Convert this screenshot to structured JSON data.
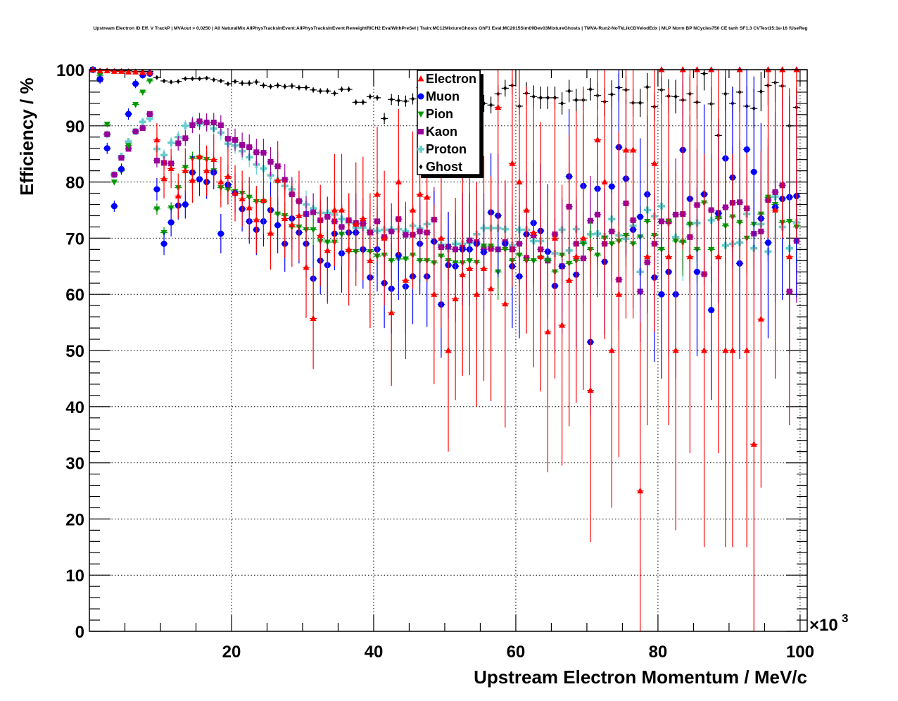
{
  "chart_data": {
    "type": "scatter",
    "title": "Upstream Electron ID Eff. V TrackP | MVAout > 0.0250 | All NaturalMix AllPhysTracksInEvent:AllPhysTracksInEvent ReweightRICH2 EvalWithPreSel | Train:MC12MixtureGhosts GhF1 Eval:MC2015Sim09Dev03MixtureGhosts | TMVA-Run2-NoTkLikCDVelodEdx | MLP Norm BP NCycles750 CE tanh SF1.3 CVTest15:1e-16 !UseReg",
    "xlabel": "Upstream Electron Momentum / MeV/c",
    "ylabel": "Efficiency / %",
    "x_multiplier": "×10",
    "x_multiplier_exp": "3",
    "xlim": [
      0,
      101
    ],
    "ylim": [
      0,
      100
    ],
    "xticks": [
      "20",
      "40",
      "60",
      "80",
      "100"
    ],
    "yticks": [
      "0",
      "10",
      "20",
      "30",
      "40",
      "50",
      "60",
      "70",
      "80",
      "90",
      "100"
    ],
    "grid": true,
    "legend_position": "top-center",
    "bin_width": 1,
    "series": [
      {
        "name": "Electron",
        "color": "#ff0000",
        "marker": "triangle-up",
        "values": [
          100,
          99.8,
          99.8,
          99.7,
          99.7,
          99.6,
          99.6,
          99.5,
          99.4,
          87.5,
          80.6,
          82.4,
          77.5,
          82,
          80.3,
          84.5,
          82,
          84,
          80,
          81,
          78,
          77,
          75.4,
          73.3,
          76.7,
          70.9,
          80.3,
          73.5,
          72.4,
          74,
          64.8,
          55.7,
          70.5,
          67.8,
          75,
          75,
          68,
          72.5,
          73.5,
          66,
          77.8,
          70,
          56.7,
          80,
          62.5,
          75,
          77.8,
          77.3,
          60,
          70,
          50,
          59.2,
          63.5,
          64.6,
          60,
          64.6,
          61,
          93.3,
          58.3,
          83.3,
          80,
          75,
          71,
          66.7,
          53.3,
          70,
          54.5,
          62.5,
          66.7,
          70,
          42.9,
          87.5,
          80,
          50,
          60,
          85.7,
          85.7,
          25,
          66.7,
          83.3,
          100,
          66.7,
          50,
          100,
          66.7,
          100,
          50,
          100,
          66.7,
          50,
          50,
          100,
          50,
          33.3,
          55.6,
          100,
          75,
          100,
          66.7,
          100
        ],
        "err": [
          0.3,
          0.3,
          0.3,
          0.3,
          0.3,
          0.3,
          0.3,
          0.3,
          0.3,
          3,
          3.5,
          3.5,
          4,
          4,
          4,
          4,
          4.5,
          4.5,
          4.5,
          5,
          5,
          5,
          5.5,
          6,
          6,
          6.5,
          7,
          7,
          7.5,
          8,
          9,
          9,
          9,
          9.5,
          10,
          10,
          10,
          11,
          11,
          12,
          12,
          12,
          13,
          13,
          14,
          14,
          15,
          15,
          16,
          16,
          18,
          18,
          18,
          19,
          20,
          20,
          20,
          22,
          22,
          22,
          22,
          22,
          24,
          24,
          25,
          25,
          25,
          26,
          26,
          27,
          27,
          28,
          28,
          28,
          29,
          30,
          30,
          30,
          30,
          30,
          30,
          30,
          32,
          32,
          35,
          32,
          35,
          35,
          35,
          35,
          35,
          35,
          35,
          35,
          30,
          30,
          30,
          30,
          30,
          30
        ]
      },
      {
        "name": "Muon",
        "color": "#0000ff",
        "marker": "circle",
        "values": [
          100,
          98.3,
          86,
          75.7,
          82.3,
          92.1,
          97.5,
          99,
          99.3,
          78.7,
          69,
          72.8,
          75.8,
          76,
          81.7,
          80.5,
          80,
          81.7,
          70.8,
          79.5,
          78,
          75.2,
          73,
          71.5,
          73,
          75,
          72.3,
          69,
          73.5,
          71,
          69,
          62.8,
          66,
          65.2,
          70.8,
          67.3,
          71,
          71,
          68,
          63,
          68,
          62,
          61,
          67,
          61.4,
          63.2,
          69,
          63.2,
          69.4,
          58.2,
          65.2,
          65,
          68,
          68,
          69,
          67.5,
          74.6,
          74,
          69,
          65,
          63.2,
          70.7,
          72.7,
          71.3,
          67.6,
          61.5,
          65,
          81,
          63.5,
          79.3,
          51.5,
          78.8,
          65.8,
          79.2,
          86.2,
          80.6,
          71.5,
          73.8,
          77.8,
          63,
          60,
          64,
          60,
          85.7,
          77,
          64,
          77.8,
          57.2,
          74.4,
          84.2,
          80.8,
          65.5,
          85.8,
          81.8,
          73.5,
          69.2,
          75.5,
          77,
          77.3,
          77.5
        ],
        "err": [
          0.5,
          0.8,
          1,
          1,
          1,
          1,
          0.8,
          0.5,
          0.5,
          2,
          2,
          2.5,
          2.5,
          2.5,
          3,
          3,
          3,
          3,
          3.5,
          3.5,
          3.5,
          4,
          4,
          4.5,
          4.5,
          5,
          5,
          5,
          5.5,
          5.5,
          6,
          6,
          6,
          6.5,
          6.5,
          7,
          7,
          7,
          7,
          7.5,
          7.5,
          8,
          8,
          8,
          8.5,
          8.5,
          9,
          9,
          9,
          9.5,
          9.5,
          10,
          10,
          10,
          10,
          10.5,
          10.5,
          11,
          11,
          11,
          11,
          11,
          11,
          12,
          12,
          12,
          12,
          12,
          13,
          13,
          13,
          13,
          13,
          14,
          14,
          14,
          14,
          14,
          14,
          15,
          15,
          15,
          15,
          15,
          15,
          15,
          16,
          16,
          16,
          16,
          16,
          17,
          17,
          17,
          17,
          17,
          17,
          18,
          18,
          18
        ]
      },
      {
        "name": "Pion",
        "color": "#009900",
        "marker": "triangle-down",
        "values": [
          100,
          99,
          90.3,
          80,
          82,
          86.5,
          93.8,
          96,
          98,
          75.2,
          71,
          75.4,
          79,
          82.6,
          84.2,
          84.3,
          84,
          82,
          79,
          78.7,
          78.3,
          78,
          77.3,
          76.5,
          76.5,
          75,
          74.3,
          74,
          72,
          72,
          71.5,
          71.5,
          69.5,
          69.3,
          69.3,
          70.7,
          67.6,
          67.6,
          67.8,
          67.6,
          66.8,
          67,
          66,
          66.3,
          66.3,
          67,
          66,
          66,
          65.6,
          66.8,
          66,
          65.6,
          65.6,
          66,
          65.7,
          68.6,
          68.6,
          64,
          68,
          66,
          67,
          66,
          66,
          66.5,
          66,
          64,
          67,
          65.5,
          66,
          69,
          68,
          67,
          70,
          69,
          69.5,
          70.5,
          69,
          70.2,
          73,
          70.5,
          68,
          73,
          69.5,
          69.3,
          72.5,
          68,
          76.3,
          68,
          73.5,
          72.2,
          73.8,
          72.8,
          70,
          72.5,
          74.3,
          77.3,
          76,
          72.8,
          73,
          72
        ],
        "err": [
          0.3,
          0.3,
          0.3,
          0.3,
          0.3,
          0.3,
          0.3,
          0.3,
          0.3,
          1,
          1,
          1,
          1.2,
          1.2,
          1.2,
          1.5,
          1.5,
          1.5,
          1.5,
          1.8,
          1.8,
          2,
          2,
          2,
          2.2,
          2.2,
          2.2,
          2.5,
          2.5,
          2.5,
          2.5,
          2.8,
          2.8,
          3,
          3,
          3,
          3,
          3.2,
          3.2,
          3.5,
          3.5,
          3.5,
          3.5,
          3.8,
          3.8,
          4,
          4,
          4,
          4,
          4.2,
          4.2,
          4.5,
          4.5,
          4.5,
          4.5,
          4.8,
          4.8,
          5,
          5,
          5,
          5,
          5,
          5,
          5,
          5,
          5,
          5,
          5,
          5,
          5,
          5,
          5.5,
          5.5,
          5.5,
          5.5,
          5.5,
          5.5,
          5.5,
          5.5,
          5.5,
          5.5,
          6,
          6,
          6,
          6,
          6,
          6,
          6,
          6,
          6,
          6,
          6.5,
          6.5,
          6.5,
          6.5,
          6.5,
          6.5,
          6.5,
          6.5,
          6.5
        ]
      },
      {
        "name": "Kaon",
        "color": "#990099",
        "marker": "square",
        "values": [
          100,
          98.3,
          88.5,
          81.3,
          84.3,
          85.9,
          89,
          89.6,
          92.1,
          83.8,
          83.4,
          83.3,
          86.9,
          87.8,
          90.1,
          90.8,
          90.6,
          90.6,
          90.1,
          87.7,
          87.5,
          86.6,
          86.2,
          85.3,
          85.2,
          83.6,
          82.8,
          80.4,
          77.8,
          76.6,
          74.3,
          74.6,
          73.2,
          73.8,
          73,
          72,
          73.2,
          72.7,
          72.6,
          71,
          73,
          70.2,
          71.2,
          73.4,
          70.6,
          70.6,
          71.2,
          71,
          73.3,
          68.4,
          68.5,
          68,
          68.3,
          69.6,
          69.3,
          68,
          68.1,
          68,
          69.3,
          68,
          69,
          66.5,
          70.5,
          68,
          66,
          70.7,
          65,
          75.6,
          69,
          66.4,
          73.1,
          74.2,
          69,
          71.2,
          62.6,
          76.2,
          73.2,
          60.5,
          65.7,
          69,
          73,
          73,
          74.2,
          74.3,
          70.2,
          75.9,
          63.6,
          75,
          74.5,
          75.5,
          76.3,
          76.4,
          75.3,
          70.8,
          71.2,
          76.8,
          78.2,
          79.4,
          60.5,
          69.5
        ],
        "err": [
          0.4,
          0.4,
          0.4,
          0.4,
          0.4,
          0.4,
          0.4,
          0.4,
          0.4,
          1.2,
          1.2,
          1.3,
          1.3,
          1.4,
          1.4,
          1.5,
          1.6,
          1.7,
          1.8,
          1.9,
          2,
          2.2,
          2.3,
          2.4,
          2.5,
          2.6,
          2.7,
          2.8,
          3,
          3.1,
          3.2,
          3.4,
          3.5,
          3.6,
          3.8,
          4,
          4,
          4.2,
          4.4,
          4.5,
          4.6,
          4.8,
          5,
          5,
          5.2,
          5.4,
          5.5,
          5.6,
          5.8,
          6,
          6,
          6.2,
          6.4,
          6.5,
          6.6,
          6.8,
          7,
          7,
          7.2,
          7.4,
          7.5,
          8,
          8,
          8,
          8,
          8,
          8,
          8,
          8,
          8,
          8,
          9,
          9,
          9,
          9,
          9,
          9,
          9,
          9,
          9,
          9,
          10,
          10,
          10,
          10,
          10,
          10,
          10,
          10,
          10,
          10,
          11,
          11,
          11,
          11,
          11,
          11,
          11,
          11,
          11
        ]
      },
      {
        "name": "Proton",
        "color": "#66cccc",
        "marker": "cross",
        "values": [
          100,
          98.3,
          88.5,
          81.3,
          84.6,
          87.2,
          89,
          90.7,
          91.3,
          85.9,
          84.8,
          87,
          88,
          90,
          90.5,
          90.4,
          90.5,
          89.5,
          88.8,
          86.8,
          86.5,
          85.5,
          84.4,
          83.1,
          82.4,
          81.2,
          80.3,
          79.3,
          78.7,
          76.6,
          76,
          75.3,
          74.5,
          74.5,
          74.2,
          73.4,
          72.8,
          71.8,
          71.9,
          71.4,
          71.3,
          71.5,
          71.5,
          71.6,
          71.2,
          72.2,
          71.7,
          72.5,
          69.4,
          68.8,
          68.1,
          69,
          69,
          69.2,
          70.7,
          71.8,
          71.8,
          71.8,
          71.6,
          68.7,
          71.5,
          71.5,
          69.5,
          69.5,
          66.3,
          67.3,
          71.5,
          67.8,
          71.6,
          69.2,
          70.7,
          70.8,
          70.3,
          73.4,
          70.5,
          69.9,
          72.2,
          64,
          75,
          73.9,
          75.7,
          72.8,
          70.2,
          69.4,
          72.5,
          72.7,
          77.9,
          73.2,
          73.7,
          68.7,
          69,
          69.2,
          74.3,
          68.2,
          72.5,
          67.6,
          77.4,
          72,
          68.2,
          72.8
        ],
        "err": [
          0.3,
          0.3,
          0.3,
          0.3,
          0.3,
          0.3,
          0.3,
          0.3,
          0.3,
          1,
          1,
          1,
          1,
          1,
          1.2,
          1.2,
          1.2,
          1.4,
          1.4,
          1.5,
          1.5,
          1.6,
          1.7,
          1.8,
          1.9,
          2,
          2.1,
          2.2,
          2.3,
          2.4,
          2.5,
          2.6,
          2.7,
          2.8,
          2.9,
          3,
          3.1,
          3.2,
          3.3,
          3.4,
          3.5,
          3.6,
          3.7,
          3.8,
          3.9,
          4,
          4.1,
          4.2,
          4.3,
          4.4,
          4.5,
          4.6,
          4.7,
          4.8,
          4.9,
          5,
          5.1,
          5.2,
          5.3,
          5.4,
          5.5,
          6,
          6,
          6,
          6,
          6,
          6,
          6,
          6,
          6,
          6,
          6.5,
          6.5,
          6.5,
          6.5,
          6.5,
          6.5,
          6.5,
          6.5,
          6.5,
          6.5,
          7,
          7,
          7,
          7,
          7,
          7,
          7,
          7,
          7,
          7,
          7.5,
          7.5,
          7.5,
          7.5,
          7.5,
          7.5,
          7.5,
          7.5,
          7.5
        ]
      },
      {
        "name": "Ghost",
        "color": "#000000",
        "marker": "diamond",
        "values": [
          100,
          99.9,
          99.9,
          99.8,
          99.8,
          99.8,
          99.7,
          99.7,
          99.7,
          98.6,
          98,
          97.8,
          97.9,
          98.4,
          98.4,
          98.4,
          98.5,
          98.2,
          98,
          97.5,
          97.9,
          97.6,
          97.6,
          97.8,
          97.2,
          97,
          97.2,
          97,
          97.1,
          96.8,
          96.8,
          96.4,
          96.2,
          96.2,
          95.8,
          96.5,
          96.5,
          94.2,
          94.2,
          95.2,
          95,
          91.3,
          94.7,
          94.5,
          94.4,
          94.8,
          96.8,
          96,
          95.5,
          95.5,
          95,
          95,
          94.5,
          94.5,
          94.5,
          94,
          93.7,
          95.7,
          96.7,
          97.2,
          93.5,
          95.8,
          95.2,
          95,
          95,
          95,
          94,
          96.2,
          94.6,
          94.6,
          96.5,
          95.4,
          94.3,
          95.6,
          96.8,
          96.4,
          94.1,
          94.1,
          96.9,
          93.4,
          96.4,
          95.3,
          95.2,
          94.6,
          95.7,
          94.2,
          99.3,
          93.9,
          88.3,
          95.7,
          94,
          96,
          93.5,
          93.1,
          96.1,
          97.2,
          97.7,
          97.1,
          90,
          93.3
        ],
        "err": [
          0.1,
          0.1,
          0.1,
          0.1,
          0.1,
          0.1,
          0.1,
          0.1,
          0.1,
          0.3,
          0.3,
          0.3,
          0.3,
          0.3,
          0.3,
          0.3,
          0.3,
          0.3,
          0.3,
          0.3,
          0.3,
          0.5,
          0.5,
          0.5,
          0.5,
          0.5,
          0.5,
          0.5,
          0.5,
          0.5,
          0.5,
          0.5,
          0.5,
          0.5,
          0.5,
          0.5,
          0.5,
          0.5,
          0.5,
          0.5,
          0.5,
          1,
          1,
          1,
          1,
          1,
          1,
          1,
          1,
          1,
          1,
          1.5,
          1.5,
          1.5,
          1.5,
          1.5,
          1.5,
          1.5,
          1.5,
          1.5,
          1.5,
          2,
          2,
          2,
          2,
          2,
          2,
          2,
          2,
          2,
          2,
          2.5,
          2.5,
          2.5,
          2.5,
          2.5,
          2.5,
          2.5,
          2.5,
          2.5,
          2.5,
          3,
          3,
          3,
          3,
          3,
          3,
          3,
          3,
          3,
          3,
          3.5,
          3.5,
          3.5,
          3.5,
          3.5,
          3.5,
          3.5,
          3.5,
          3.5
        ]
      }
    ]
  }
}
